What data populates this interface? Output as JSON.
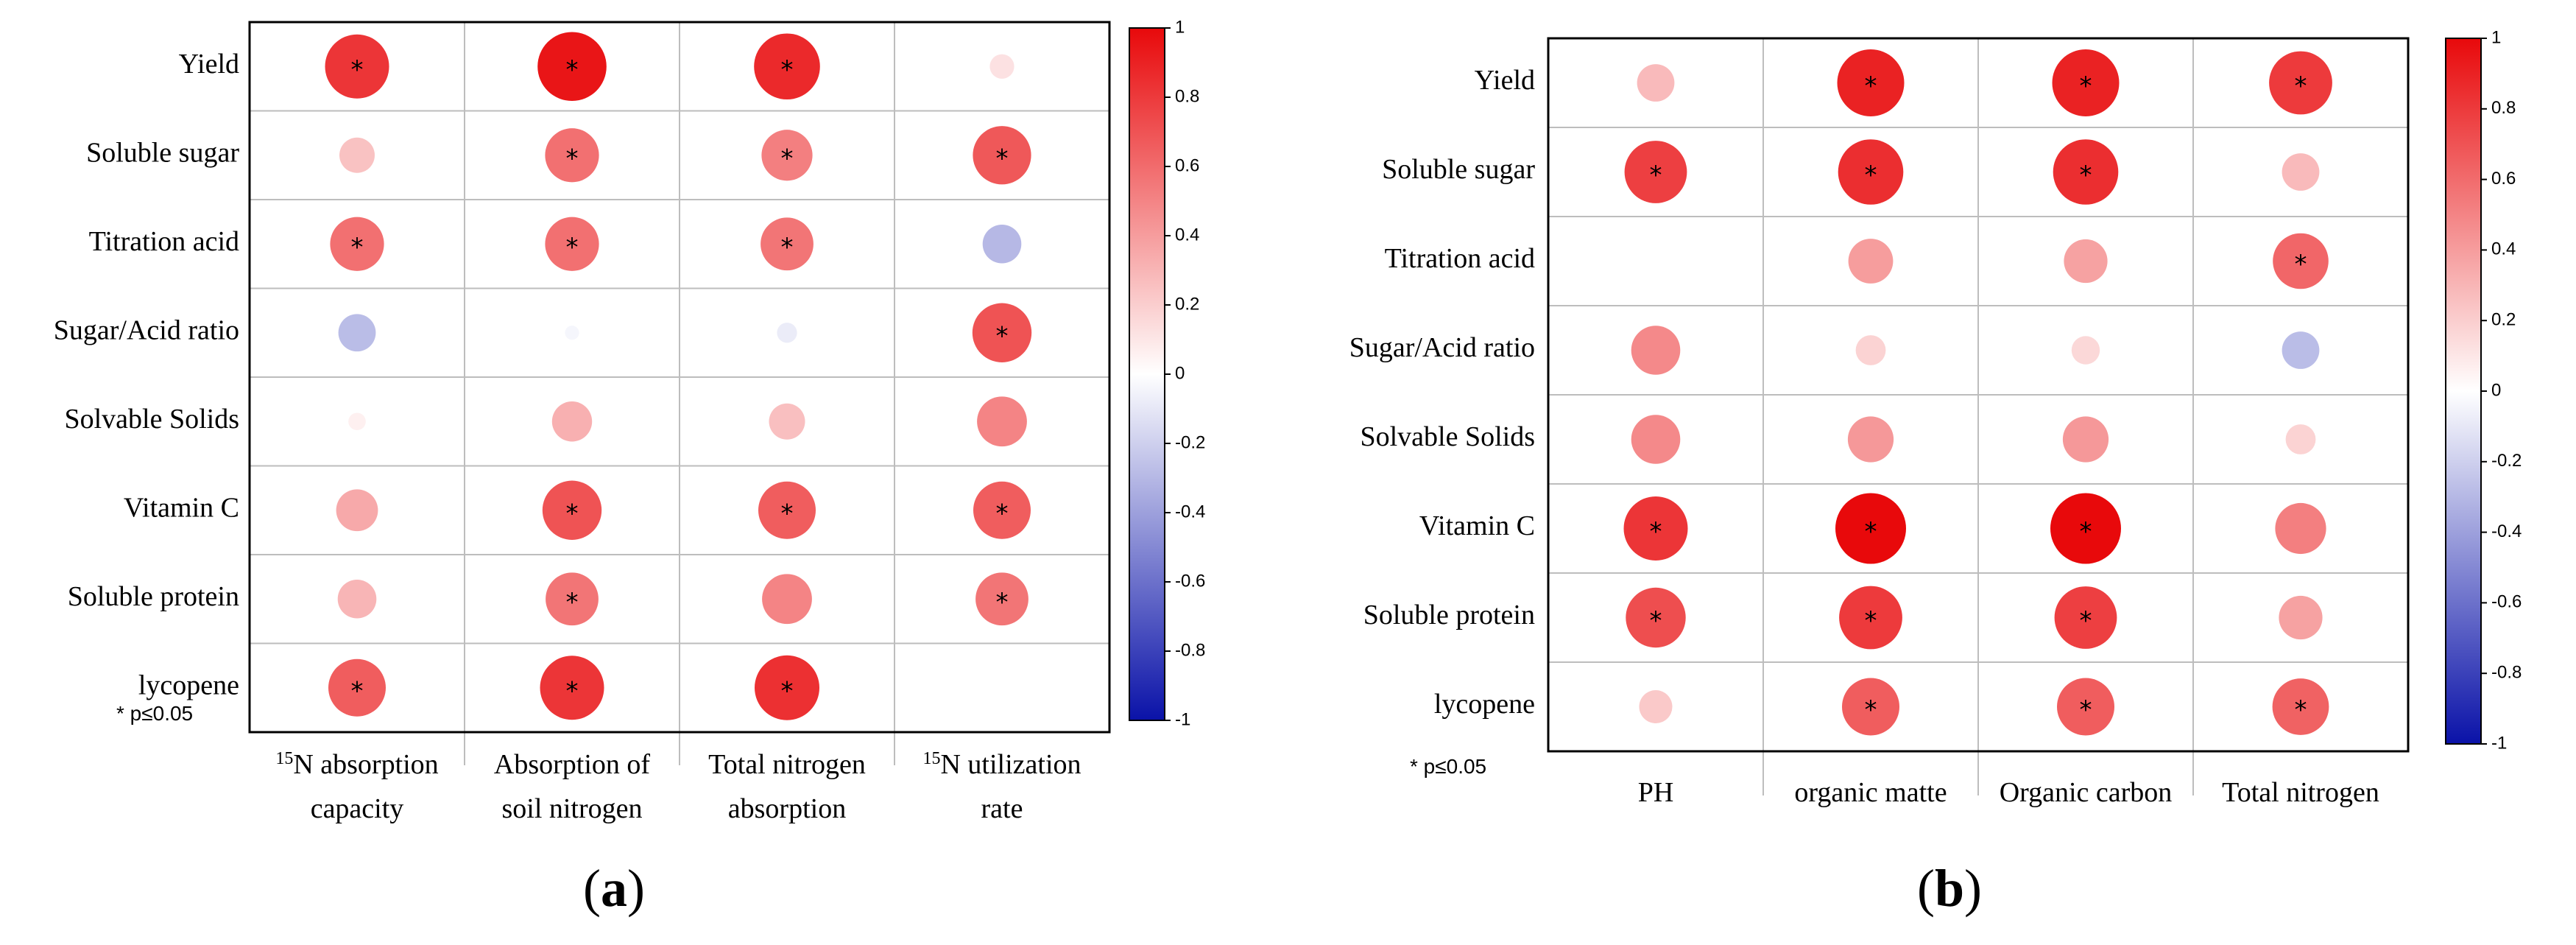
{
  "chart_data": [
    {
      "type": "heatmap",
      "panel_label": "(a)",
      "rows": [
        "Yield",
        "Soluble sugar",
        "Titration acid",
        "Sugar/Acid ratio",
        "Solvable Solids",
        "Vitamin C",
        "Soluble protein",
        "lycopene"
      ],
      "columns": [
        {
          "sup": "15",
          "line1": "N absorption",
          "line2": "capacity"
        },
        {
          "sup": "",
          "line1": "Absorption of",
          "line2": "soil nitrogen"
        },
        {
          "sup": "",
          "line1": "Total nitrogen",
          "line2": "absorption"
        },
        {
          "sup": "15",
          "line1": "N utilization",
          "line2": "rate"
        }
      ],
      "values": [
        [
          0.82,
          0.95,
          0.87,
          0.12
        ],
        [
          0.25,
          0.58,
          0.52,
          0.68
        ],
        [
          0.58,
          0.58,
          0.56,
          -0.3
        ],
        [
          -0.28,
          -0.04,
          -0.08,
          0.7
        ],
        [
          0.06,
          0.32,
          0.26,
          0.5
        ],
        [
          0.35,
          0.7,
          0.66,
          0.66
        ],
        [
          0.3,
          0.56,
          0.5,
          0.56
        ],
        [
          0.66,
          0.82,
          0.84,
          0.0
        ]
      ],
      "significant": [
        [
          true,
          true,
          true,
          false
        ],
        [
          false,
          true,
          true,
          true
        ],
        [
          true,
          true,
          true,
          false
        ],
        [
          false,
          false,
          false,
          true
        ],
        [
          false,
          false,
          false,
          false
        ],
        [
          false,
          true,
          true,
          true
        ],
        [
          false,
          true,
          false,
          true
        ],
        [
          true,
          true,
          true,
          false
        ]
      ],
      "note": "* p≤0.05",
      "star": "*",
      "colorbar_range": [
        -1,
        1
      ],
      "colorbar_ticks": [
        "1",
        "0.8",
        "0.6",
        "0.4",
        "0.2",
        "0",
        "-0.2",
        "-0.4",
        "-0.6",
        "-0.8",
        "-1"
      ],
      "colors": {
        "positive": "#e8090b",
        "negative": "#0a12a8",
        "zero": "#ffffff"
      }
    },
    {
      "type": "heatmap",
      "panel_label": "(b)",
      "rows": [
        "Yield",
        "Soluble sugar",
        "Titration acid",
        "Sugar/Acid ratio",
        "Solvable Solids",
        "Vitamin C",
        "Soluble protein",
        "lycopene"
      ],
      "columns": [
        {
          "sup": "",
          "line1": "PH",
          "line2": ""
        },
        {
          "sup": "",
          "line1": "organic matte",
          "line2": ""
        },
        {
          "sup": "",
          "line1": "Organic carbon",
          "line2": ""
        },
        {
          "sup": "",
          "line1": "Total nitrogen",
          "line2": ""
        }
      ],
      "values": [
        [
          0.28,
          0.9,
          0.9,
          0.8
        ],
        [
          0.78,
          0.85,
          0.85,
          0.28
        ],
        [
          0.0,
          0.4,
          0.38,
          0.62
        ],
        [
          0.48,
          0.18,
          0.16,
          -0.28
        ],
        [
          0.48,
          0.42,
          0.42,
          0.18
        ],
        [
          0.82,
          1.0,
          1.0,
          0.52
        ],
        [
          0.72,
          0.8,
          0.78,
          0.38
        ],
        [
          0.22,
          0.66,
          0.66,
          0.64
        ]
      ],
      "significant": [
        [
          false,
          true,
          true,
          true
        ],
        [
          true,
          true,
          true,
          false
        ],
        [
          false,
          false,
          false,
          true
        ],
        [
          false,
          false,
          false,
          false
        ],
        [
          false,
          false,
          false,
          false
        ],
        [
          true,
          true,
          true,
          false
        ],
        [
          true,
          true,
          true,
          false
        ],
        [
          false,
          true,
          true,
          true
        ]
      ],
      "note": "* p≤0.05",
      "star": "*",
      "colorbar_range": [
        -1,
        1
      ],
      "colorbar_ticks": [
        "1",
        "0.8",
        "0.6",
        "0.4",
        "0.2",
        "0",
        "-0.2",
        "-0.4",
        "-0.6",
        "-0.8",
        "-1"
      ],
      "colors": {
        "positive": "#e8090b",
        "negative": "#0a12a8",
        "zero": "#ffffff"
      }
    }
  ]
}
